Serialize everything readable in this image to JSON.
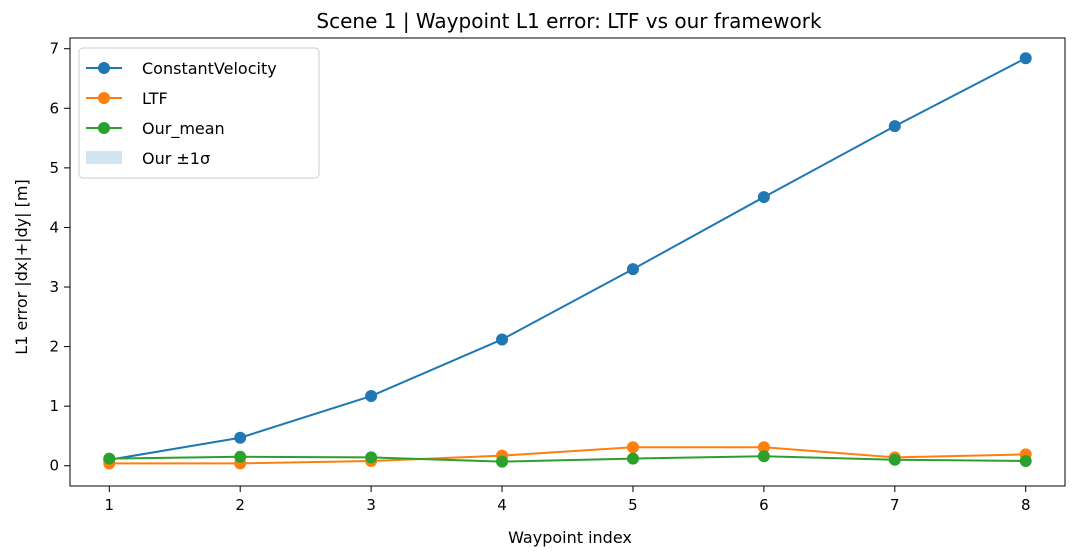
{
  "chart_data": {
    "type": "line",
    "title": "Scene 1 | Waypoint L1 error: LTF vs our framework",
    "xlabel": "Waypoint index",
    "ylabel": "L1 error |dx|+|dy| [m]",
    "x": [
      1,
      2,
      3,
      4,
      5,
      6,
      7,
      8
    ],
    "xlim": [
      0.7,
      8.3
    ],
    "ylim": [
      -0.34,
      7.18
    ],
    "xticks": [
      1,
      2,
      3,
      4,
      5,
      6,
      7,
      8
    ],
    "yticks": [
      0,
      1,
      2,
      3,
      4,
      5,
      6,
      7
    ],
    "grid": false,
    "legend_position": "top-left",
    "series": [
      {
        "name": "ConstantVelocity",
        "color": "#1f77b4",
        "values": [
          0.1,
          0.47,
          1.17,
          2.12,
          3.3,
          4.51,
          5.7,
          6.84
        ]
      },
      {
        "name": "LTF",
        "color": "#ff7f0e",
        "values": [
          0.04,
          0.04,
          0.08,
          0.17,
          0.31,
          0.31,
          0.14,
          0.19
        ]
      },
      {
        "name": "Our_mean",
        "color": "#2ca02c",
        "values": [
          0.12,
          0.15,
          0.14,
          0.07,
          0.12,
          0.16,
          0.1,
          0.08
        ]
      }
    ],
    "band": {
      "name": "Our ±1σ",
      "color": "#1f77b4"
    }
  }
}
